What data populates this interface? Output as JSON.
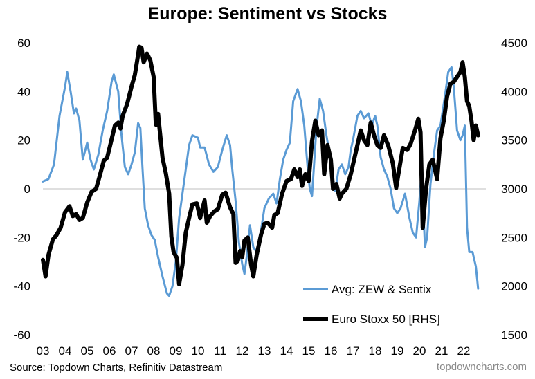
{
  "title": "Europe: Sentiment vs Stocks",
  "source": "Source: Topdown Charts, Refinitiv Datastream",
  "watermark": "topdowncharts.com",
  "chart_data": {
    "type": "line",
    "title": "Europe: Sentiment vs Stocks",
    "x_ticks": [
      "03",
      "04",
      "05",
      "06",
      "07",
      "08",
      "09",
      "10",
      "11",
      "12",
      "13",
      "14",
      "15",
      "16",
      "17",
      "18",
      "19",
      "20",
      "21",
      "22"
    ],
    "x_range": [
      2003.0,
      2023.0
    ],
    "y_left": {
      "ticks": [
        60,
        40,
        20,
        0,
        -20,
        -40,
        -60
      ],
      "range": [
        -60,
        60
      ]
    },
    "y_right": {
      "ticks": [
        4500,
        4000,
        3500,
        3000,
        2500,
        2000,
        1500
      ],
      "range": [
        1500,
        4500
      ]
    },
    "legend_position": "bottom-right",
    "grid": false,
    "colors": {
      "sentiment": "#5b9bd5",
      "stoxx": "#000000"
    },
    "series": [
      {
        "name": "Avg: ZEW & Sentix",
        "axis": "left",
        "points": [
          [
            2003.0,
            3
          ],
          [
            2003.25,
            4
          ],
          [
            2003.5,
            10
          ],
          [
            2003.75,
            30
          ],
          [
            2004.0,
            42
          ],
          [
            2004.1,
            48
          ],
          [
            2004.25,
            40
          ],
          [
            2004.4,
            31
          ],
          [
            2004.5,
            33
          ],
          [
            2004.65,
            28
          ],
          [
            2004.8,
            12
          ],
          [
            2005.0,
            19
          ],
          [
            2005.15,
            12
          ],
          [
            2005.3,
            8
          ],
          [
            2005.5,
            14
          ],
          [
            2005.7,
            24
          ],
          [
            2005.9,
            32
          ],
          [
            2006.1,
            44
          ],
          [
            2006.2,
            47
          ],
          [
            2006.4,
            40
          ],
          [
            2006.55,
            22
          ],
          [
            2006.7,
            9
          ],
          [
            2006.85,
            6
          ],
          [
            2007.0,
            10
          ],
          [
            2007.15,
            15
          ],
          [
            2007.3,
            27
          ],
          [
            2007.4,
            25
          ],
          [
            2007.5,
            8
          ],
          [
            2007.6,
            -8
          ],
          [
            2007.75,
            -15
          ],
          [
            2007.9,
            -19
          ],
          [
            2008.05,
            -21
          ],
          [
            2008.2,
            -28
          ],
          [
            2008.4,
            -36
          ],
          [
            2008.6,
            -43
          ],
          [
            2008.7,
            -44
          ],
          [
            2008.85,
            -40
          ],
          [
            2009.0,
            -30
          ],
          [
            2009.15,
            -12
          ],
          [
            2009.3,
            -2
          ],
          [
            2009.45,
            8
          ],
          [
            2009.6,
            18
          ],
          [
            2009.75,
            22
          ],
          [
            2010.0,
            21
          ],
          [
            2010.1,
            17
          ],
          [
            2010.3,
            17
          ],
          [
            2010.5,
            10
          ],
          [
            2010.7,
            7
          ],
          [
            2010.9,
            9
          ],
          [
            2011.1,
            16
          ],
          [
            2011.3,
            22
          ],
          [
            2011.45,
            18
          ],
          [
            2011.55,
            8
          ],
          [
            2011.7,
            -5
          ],
          [
            2011.85,
            -22
          ],
          [
            2012.0,
            -31
          ],
          [
            2012.1,
            -35
          ],
          [
            2012.2,
            -28
          ],
          [
            2012.35,
            -15
          ],
          [
            2012.5,
            -24
          ],
          [
            2012.65,
            -26
          ],
          [
            2012.85,
            -17
          ],
          [
            2013.0,
            -8
          ],
          [
            2013.2,
            -4
          ],
          [
            2013.4,
            -2
          ],
          [
            2013.55,
            -6
          ],
          [
            2013.7,
            4
          ],
          [
            2013.85,
            12
          ],
          [
            2014.0,
            16
          ],
          [
            2014.15,
            19
          ],
          [
            2014.3,
            36
          ],
          [
            2014.5,
            41
          ],
          [
            2014.65,
            36
          ],
          [
            2014.8,
            26
          ],
          [
            2014.95,
            9
          ],
          [
            2015.05,
            0
          ],
          [
            2015.15,
            -3
          ],
          [
            2015.35,
            25
          ],
          [
            2015.5,
            37
          ],
          [
            2015.65,
            32
          ],
          [
            2015.8,
            22
          ],
          [
            2015.95,
            14
          ],
          [
            2016.1,
            4
          ],
          [
            2016.2,
            -1
          ],
          [
            2016.35,
            8
          ],
          [
            2016.5,
            10
          ],
          [
            2016.65,
            6
          ],
          [
            2016.8,
            9
          ],
          [
            2016.9,
            16
          ],
          [
            2017.0,
            20
          ],
          [
            2017.2,
            30
          ],
          [
            2017.35,
            32
          ],
          [
            2017.5,
            29
          ],
          [
            2017.7,
            31
          ],
          [
            2017.85,
            26
          ],
          [
            2018.0,
            30
          ],
          [
            2018.1,
            26
          ],
          [
            2018.25,
            13
          ],
          [
            2018.4,
            8
          ],
          [
            2018.55,
            5
          ],
          [
            2018.7,
            0
          ],
          [
            2018.85,
            -8
          ],
          [
            2019.0,
            -10
          ],
          [
            2019.15,
            -8
          ],
          [
            2019.35,
            -2
          ],
          [
            2019.55,
            -12
          ],
          [
            2019.7,
            -18
          ],
          [
            2019.85,
            -20
          ],
          [
            2020.0,
            -5
          ],
          [
            2020.1,
            8
          ],
          [
            2020.25,
            -24
          ],
          [
            2020.35,
            -20
          ],
          [
            2020.5,
            2
          ],
          [
            2020.65,
            14
          ],
          [
            2020.8,
            24
          ],
          [
            2020.95,
            26
          ],
          [
            2021.15,
            38
          ],
          [
            2021.3,
            48
          ],
          [
            2021.45,
            50
          ],
          [
            2021.55,
            42
          ],
          [
            2021.7,
            24
          ],
          [
            2021.85,
            20
          ],
          [
            2021.95,
            22
          ],
          [
            2022.05,
            26
          ],
          [
            2022.15,
            -16
          ],
          [
            2022.25,
            -26
          ],
          [
            2022.4,
            -26
          ],
          [
            2022.55,
            -32
          ],
          [
            2022.65,
            -41
          ]
        ]
      },
      {
        "name": "Euro Stoxx 50 [RHS]",
        "axis": "right",
        "points": [
          [
            2003.0,
            2270
          ],
          [
            2003.12,
            2100
          ],
          [
            2003.25,
            2320
          ],
          [
            2003.45,
            2480
          ],
          [
            2003.6,
            2520
          ],
          [
            2003.8,
            2600
          ],
          [
            2004.0,
            2760
          ],
          [
            2004.2,
            2820
          ],
          [
            2004.35,
            2720
          ],
          [
            2004.5,
            2740
          ],
          [
            2004.65,
            2680
          ],
          [
            2004.8,
            2700
          ],
          [
            2005.0,
            2860
          ],
          [
            2005.2,
            2970
          ],
          [
            2005.4,
            3000
          ],
          [
            2005.55,
            3120
          ],
          [
            2005.75,
            3290
          ],
          [
            2005.9,
            3320
          ],
          [
            2006.05,
            3460
          ],
          [
            2006.25,
            3650
          ],
          [
            2006.4,
            3680
          ],
          [
            2006.5,
            3620
          ],
          [
            2006.6,
            3750
          ],
          [
            2006.8,
            3870
          ],
          [
            2007.0,
            4050
          ],
          [
            2007.15,
            4170
          ],
          [
            2007.3,
            4380
          ],
          [
            2007.35,
            4460
          ],
          [
            2007.45,
            4450
          ],
          [
            2007.55,
            4300
          ],
          [
            2007.7,
            4390
          ],
          [
            2007.85,
            4320
          ],
          [
            2008.0,
            4150
          ],
          [
            2008.1,
            3660
          ],
          [
            2008.2,
            3770
          ],
          [
            2008.4,
            3320
          ],
          [
            2008.55,
            3160
          ],
          [
            2008.7,
            2950
          ],
          [
            2008.8,
            2510
          ],
          [
            2008.9,
            2350
          ],
          [
            2009.05,
            2290
          ],
          [
            2009.15,
            2020
          ],
          [
            2009.3,
            2220
          ],
          [
            2009.45,
            2550
          ],
          [
            2009.6,
            2700
          ],
          [
            2009.75,
            2840
          ],
          [
            2009.95,
            2850
          ],
          [
            2010.1,
            2700
          ],
          [
            2010.3,
            2880
          ],
          [
            2010.4,
            2650
          ],
          [
            2010.55,
            2720
          ],
          [
            2010.75,
            2770
          ],
          [
            2010.9,
            2790
          ],
          [
            2011.1,
            2940
          ],
          [
            2011.25,
            2960
          ],
          [
            2011.45,
            2810
          ],
          [
            2011.6,
            2740
          ],
          [
            2011.7,
            2240
          ],
          [
            2011.8,
            2260
          ],
          [
            2011.9,
            2360
          ],
          [
            2012.0,
            2300
          ],
          [
            2012.1,
            2470
          ],
          [
            2012.25,
            2500
          ],
          [
            2012.4,
            2220
          ],
          [
            2012.5,
            2100
          ],
          [
            2012.65,
            2320
          ],
          [
            2012.85,
            2530
          ],
          [
            2013.0,
            2640
          ],
          [
            2013.15,
            2650
          ],
          [
            2013.35,
            2600
          ],
          [
            2013.45,
            2730
          ],
          [
            2013.6,
            2750
          ],
          [
            2013.8,
            2950
          ],
          [
            2014.0,
            3080
          ],
          [
            2014.2,
            3100
          ],
          [
            2014.35,
            3200
          ],
          [
            2014.5,
            3120
          ],
          [
            2014.6,
            3200
          ],
          [
            2014.7,
            3030
          ],
          [
            2014.85,
            3150
          ],
          [
            2015.0,
            3080
          ],
          [
            2015.15,
            3490
          ],
          [
            2015.3,
            3700
          ],
          [
            2015.45,
            3550
          ],
          [
            2015.6,
            3600
          ],
          [
            2015.7,
            3150
          ],
          [
            2015.85,
            3450
          ],
          [
            2016.0,
            3300
          ],
          [
            2016.1,
            3000
          ],
          [
            2016.25,
            3050
          ],
          [
            2016.4,
            2900
          ],
          [
            2016.5,
            2950
          ],
          [
            2016.7,
            3000
          ],
          [
            2016.9,
            3150
          ],
          [
            2017.05,
            3300
          ],
          [
            2017.2,
            3450
          ],
          [
            2017.35,
            3600
          ],
          [
            2017.5,
            3500
          ],
          [
            2017.65,
            3450
          ],
          [
            2017.8,
            3680
          ],
          [
            2017.95,
            3550
          ],
          [
            2018.1,
            3450
          ],
          [
            2018.25,
            3420
          ],
          [
            2018.4,
            3550
          ],
          [
            2018.6,
            3440
          ],
          [
            2018.8,
            3260
          ],
          [
            2018.95,
            3010
          ],
          [
            2019.05,
            3150
          ],
          [
            2019.25,
            3420
          ],
          [
            2019.45,
            3400
          ],
          [
            2019.6,
            3460
          ],
          [
            2019.8,
            3600
          ],
          [
            2019.95,
            3720
          ],
          [
            2020.05,
            3580
          ],
          [
            2020.15,
            2600
          ],
          [
            2020.3,
            3000
          ],
          [
            2020.45,
            3250
          ],
          [
            2020.6,
            3300
          ],
          [
            2020.75,
            3150
          ],
          [
            2020.8,
            3100
          ],
          [
            2020.95,
            3520
          ],
          [
            2021.1,
            3700
          ],
          [
            2021.25,
            3950
          ],
          [
            2021.4,
            4080
          ],
          [
            2021.55,
            4100
          ],
          [
            2021.7,
            4150
          ],
          [
            2021.85,
            4200
          ],
          [
            2021.95,
            4300
          ],
          [
            2022.05,
            4150
          ],
          [
            2022.15,
            3900
          ],
          [
            2022.25,
            3850
          ],
          [
            2022.35,
            3700
          ],
          [
            2022.45,
            3500
          ],
          [
            2022.55,
            3650
          ],
          [
            2022.65,
            3550
          ]
        ]
      }
    ]
  }
}
